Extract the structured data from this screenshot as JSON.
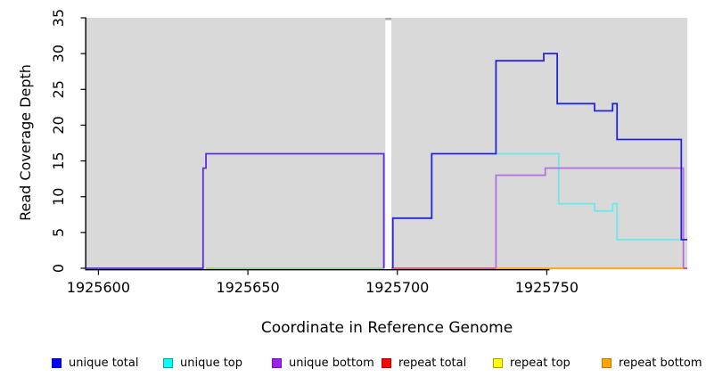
{
  "chart_data": {
    "type": "line",
    "subtype": "step-coverage",
    "title": "",
    "xlabel": "Coordinate in Reference Genome",
    "ylabel": "Read Coverage Depth",
    "xlim": [
      1925596,
      1925797
    ],
    "ylim": [
      0,
      35
    ],
    "x_ticks": [
      1925600,
      1925650,
      1925700,
      1925750
    ],
    "y_ticks": [
      0,
      5,
      10,
      15,
      20,
      25,
      30,
      35
    ],
    "grid": "off",
    "panel_bg": "#d9d9d9",
    "gap_band": {
      "from": 1925696,
      "to": 1925698,
      "fill": "#ffffff",
      "top_bar": "#a9a9a9"
    },
    "series": [
      {
        "name": "unique-total-pregap-overlap",
        "legend_ref": "unique total over unique bottom",
        "color": "#5b2ee0",
        "points": [
          [
            1925596,
            0
          ],
          [
            1925635,
            0
          ],
          [
            1925635,
            14
          ],
          [
            1925636,
            14
          ],
          [
            1925636,
            16
          ],
          [
            1925695.5,
            16
          ],
          [
            1925695.5,
            0
          ]
        ]
      },
      {
        "name": "unique-top",
        "legend_ref": "unique top",
        "color": "#70e7ec",
        "points": [
          [
            1925733,
            16
          ],
          [
            1925754,
            16
          ],
          [
            1925754,
            9
          ],
          [
            1925766,
            9
          ],
          [
            1925766,
            8
          ],
          [
            1925772,
            8
          ],
          [
            1925772,
            9
          ],
          [
            1925773.5,
            9
          ],
          [
            1925773.5,
            4
          ],
          [
            1925797,
            4
          ]
        ]
      },
      {
        "name": "unique-bottom",
        "legend_ref": "unique bottom",
        "color": "#b76fe0",
        "points": [
          [
            1925733,
            0
          ],
          [
            1925733,
            13
          ],
          [
            1925749.5,
            13
          ],
          [
            1925749.5,
            14
          ],
          [
            1925795.7,
            14
          ],
          [
            1925795.7,
            0
          ]
        ]
      },
      {
        "name": "unique-total",
        "legend_ref": "unique total",
        "color": "#2525dc",
        "points": [
          [
            1925698.5,
            0
          ],
          [
            1925698.5,
            7
          ],
          [
            1925711.5,
            7
          ],
          [
            1925711.5,
            16
          ],
          [
            1925733,
            16
          ],
          [
            1925733,
            29
          ],
          [
            1925749,
            29
          ],
          [
            1925749,
            30
          ],
          [
            1925753.5,
            30
          ],
          [
            1925753.5,
            23
          ],
          [
            1925766,
            23
          ],
          [
            1925766,
            22
          ],
          [
            1925772,
            22
          ],
          [
            1925772,
            23
          ],
          [
            1925773.5,
            23
          ],
          [
            1925773.5,
            18
          ],
          [
            1925795,
            18
          ],
          [
            1925795,
            4
          ],
          [
            1925797,
            4
          ]
        ]
      }
    ],
    "zero_line_segments": [
      {
        "name": "zero-overlap-cyan-yellow",
        "color": "#8fce8f",
        "from": 1925636,
        "to": 1925695.5
      },
      {
        "name": "zero-repeat-total",
        "color": "#d4517b",
        "from": 1925698,
        "to": 1925733
      },
      {
        "name": "zero-repeat-bottom",
        "color": "#ffa500",
        "from": 1925733,
        "to": 1925797
      },
      {
        "name": "zero-right-corner",
        "color": "#d4517b",
        "from": 1925795.7,
        "to": 1925797
      }
    ],
    "legend": [
      {
        "label": "unique total",
        "fill": "#0000ff",
        "border": "#0000b4"
      },
      {
        "label": "unique top",
        "fill": "#00ffff",
        "border": "#00a4a4"
      },
      {
        "label": "unique bottom",
        "fill": "#a020f0",
        "border": "#7414b0"
      },
      {
        "label": "repeat total",
        "fill": "#ff0000",
        "border": "#b80000"
      },
      {
        "label": "repeat top",
        "fill": "#ffff00",
        "border": "#a8a000"
      },
      {
        "label": "repeat bottom",
        "fill": "#ffa500",
        "border": "#c07c00"
      }
    ]
  }
}
